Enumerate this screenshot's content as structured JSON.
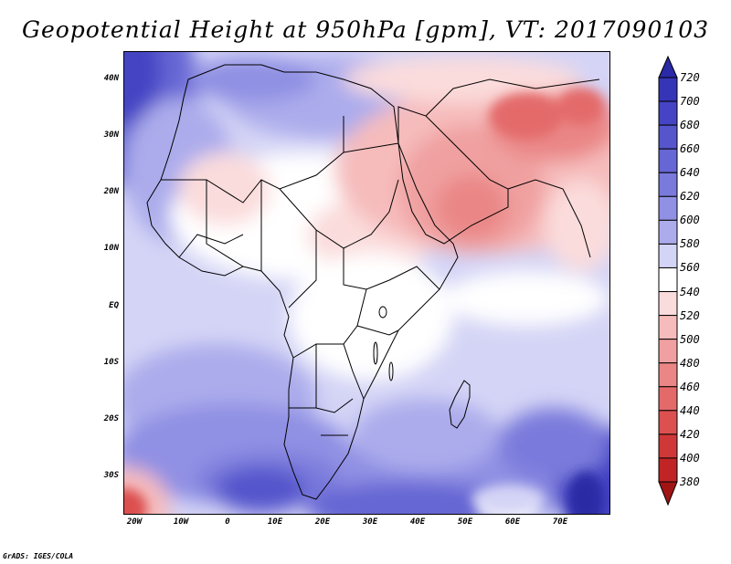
{
  "title": "Geopotential Height at 950hPa [gpm], VT: 2017090103",
  "credit": "GrADS: IGES/COLA",
  "lat_labels": [
    "40N",
    "30N",
    "20N",
    "10N",
    "EQ",
    "10S",
    "20S",
    "30S"
  ],
  "lon_labels": [
    "20W",
    "10W",
    "0",
    "10E",
    "20E",
    "30E",
    "40E",
    "50E",
    "60E",
    "70E"
  ],
  "colorbar": {
    "labels": [
      "720",
      "700",
      "680",
      "660",
      "640",
      "620",
      "600",
      "580",
      "560",
      "540",
      "520",
      "500",
      "480",
      "460",
      "440",
      "420",
      "400",
      "380"
    ],
    "colors": [
      "#2a2aa6",
      "#3535b8",
      "#4444c4",
      "#5555cc",
      "#6666d4",
      "#7a7adc",
      "#9090e4",
      "#acacec",
      "#d4d4f6",
      "#ffffff",
      "#fbdcdc",
      "#f6bcbc",
      "#f0a0a0",
      "#ea8686",
      "#e46a6a",
      "#dc5050",
      "#d03838",
      "#c02424",
      "#a01414"
    ]
  },
  "regions": {
    "africa": "Africa",
    "arabia": "Arabian Peninsula",
    "madagascar": "Madagascar"
  }
}
